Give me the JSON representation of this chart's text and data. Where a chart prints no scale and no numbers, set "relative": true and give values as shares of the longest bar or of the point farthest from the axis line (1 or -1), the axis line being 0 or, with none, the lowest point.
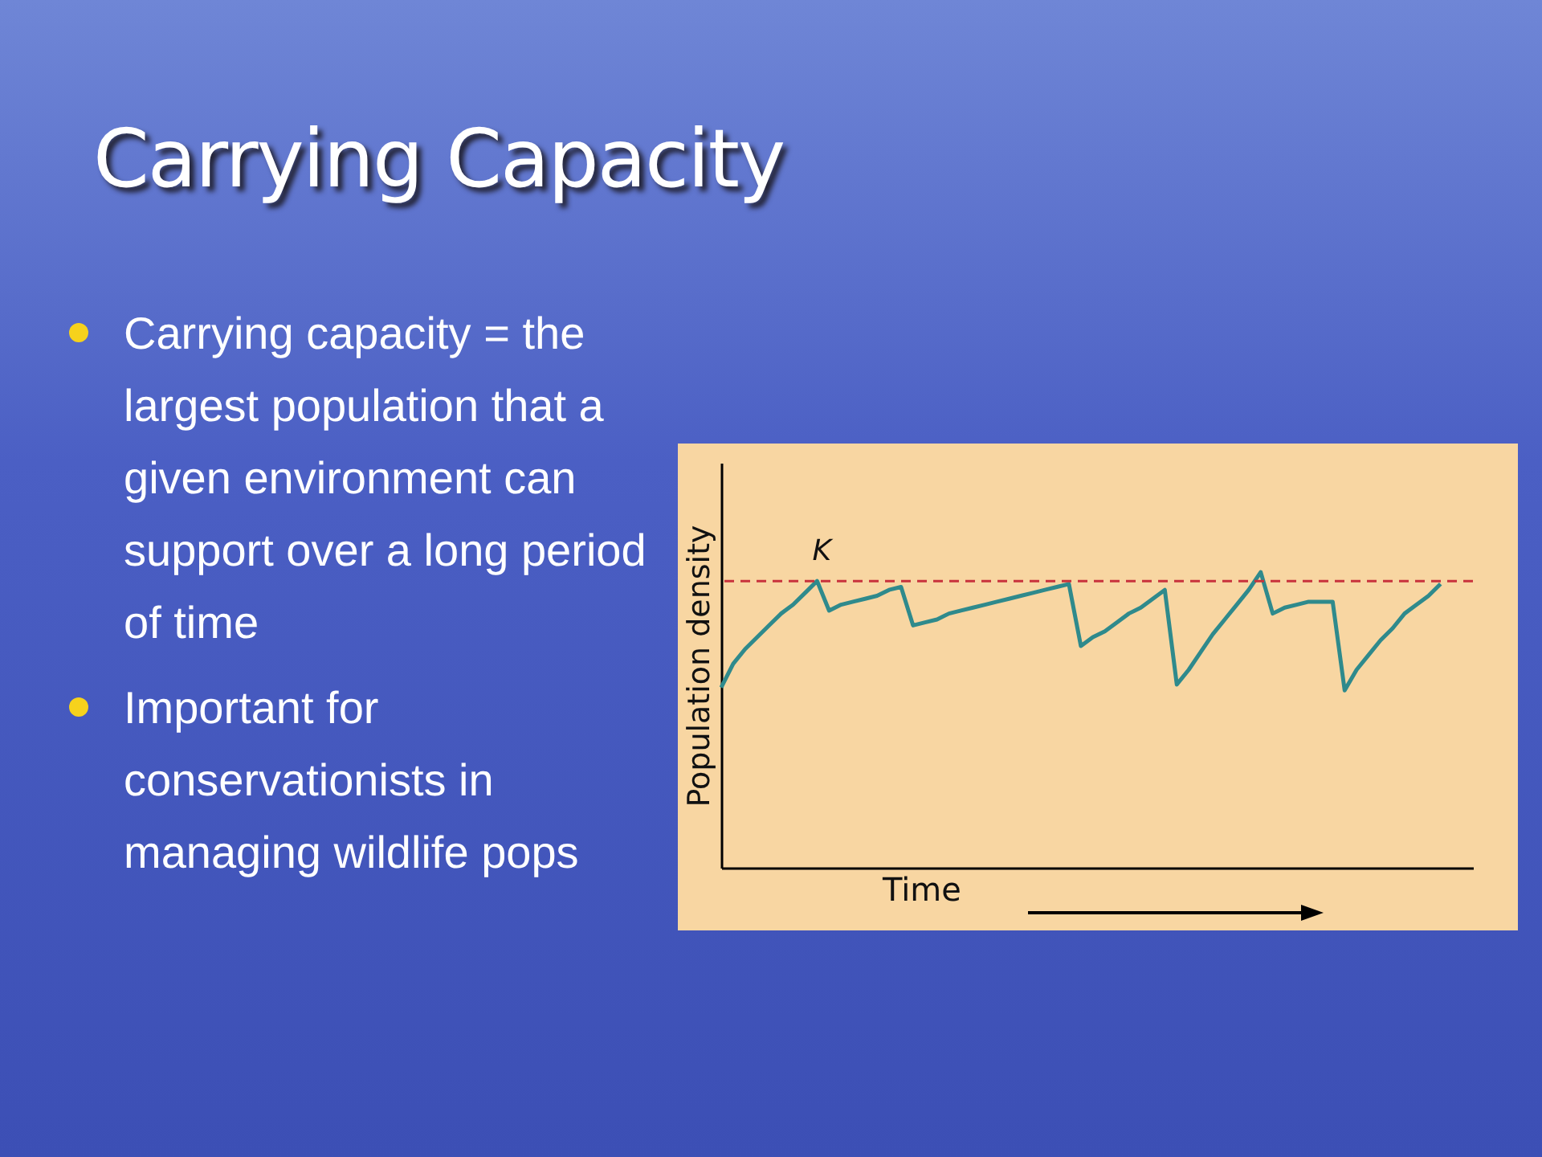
{
  "chart_data": {
    "type": "line",
    "title": "Carrying Capacity",
    "xlabel": "Time",
    "ylabel": "Population density",
    "relative": true,
    "annotations": [
      "Carrying capacity = the largest population that a given environment can support over a long period of time",
      "Important for conservationists in managing wildlife pops"
    ],
    "categories": [
      null,
      null,
      null,
      null,
      null,
      null,
      null,
      null,
      null,
      null,
      null,
      null,
      null,
      null,
      null,
      null,
      null,
      null,
      null,
      null,
      null,
      null,
      null,
      null,
      null,
      null,
      null,
      null,
      null,
      null,
      null,
      null,
      null,
      null,
      null,
      null,
      null,
      null,
      null,
      null,
      null,
      null,
      null,
      null,
      null,
      null,
      null,
      null,
      null,
      null,
      null,
      null,
      null,
      null,
      null,
      null,
      null,
      null,
      null,
      null,
      null
    ],
    "series": [
      {
        "color": "#2f8a8c",
        "values": [
          0.61,
          0.69,
          0.74,
          0.78,
          0.82,
          0.86,
          0.89,
          0.93,
          0.97,
          0.87,
          0.89,
          0.9,
          0.91,
          0.92,
          0.94,
          0.95,
          0.82,
          0.83,
          0.84,
          0.86,
          0.87,
          0.88,
          0.89,
          0.9,
          0.91,
          0.92,
          0.93,
          0.94,
          0.95,
          0.96,
          0.75,
          0.78,
          0.8,
          0.83,
          0.86,
          0.88,
          0.91,
          0.94,
          0.62,
          0.67,
          0.73,
          0.79,
          0.84,
          0.89,
          0.94,
          1,
          0.86,
          0.88,
          0.89,
          0.9,
          0.9,
          0.9,
          0.6,
          0.67,
          0.72,
          0.77,
          0.81,
          0.86,
          0.89,
          0.92,
          0.96
        ]
      }
    ],
    "ref_lines": [
      {
        "axis": "y",
        "value": 0.97,
        "label": "K",
        "color": "#c8323c",
        "line_style": "dashed"
      }
    ]
  }
}
